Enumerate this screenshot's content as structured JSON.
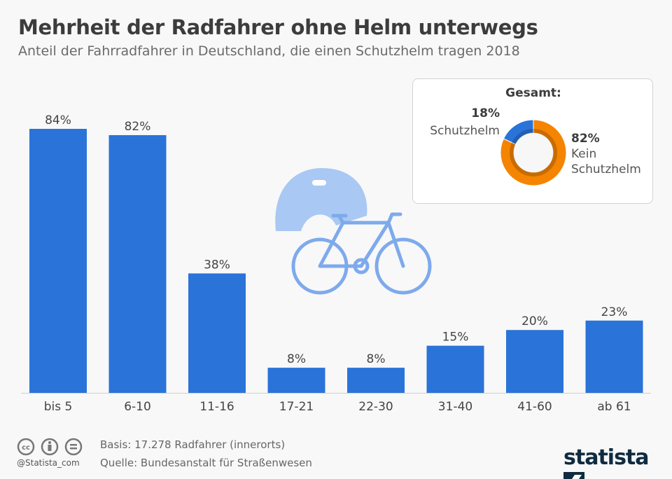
{
  "title": "Mehrheit der Radfahrer ohne Helm unterwegs",
  "subtitle": "Anteil der Fahrradfahrer in Deutschland, die einen Schutzhelm tragen 2018",
  "chart_data": [
    {
      "type": "bar",
      "categories": [
        "bis 5",
        "6-10",
        "11-16",
        "17-21",
        "22-30",
        "31-40",
        "41-60",
        "ab 61"
      ],
      "values": [
        84,
        82,
        38,
        8,
        8,
        15,
        20,
        23
      ],
      "labels": [
        "84%",
        "82%",
        "38%",
        "8%",
        "8%",
        "15%",
        "20%",
        "23%"
      ],
      "unit": "%",
      "ylim": [
        0,
        84
      ],
      "grid": false,
      "color": "#2a73d9"
    },
    {
      "type": "pie",
      "title": "Gesamt:",
      "slices": [
        {
          "name": "Schutzhelm",
          "value": 18,
          "label": "18%",
          "color": "#2a73d9"
        },
        {
          "name": "Kein Schutzhelm",
          "value": 82,
          "label": "82%",
          "color": "#f58400"
        }
      ]
    }
  ],
  "legend": {
    "title": "Gesamt:",
    "a_pct": "18%",
    "a_name": "Schutzhelm",
    "b_pct": "82%",
    "b_name1": "Kein",
    "b_name2": "Schutzhelm"
  },
  "footer": {
    "basis": "Basis: 17.278 Radfahrer (innerorts)",
    "source": "Quelle: Bundesanstalt für Straßenwesen",
    "handle": "@Statista_com",
    "logo": "statista"
  }
}
